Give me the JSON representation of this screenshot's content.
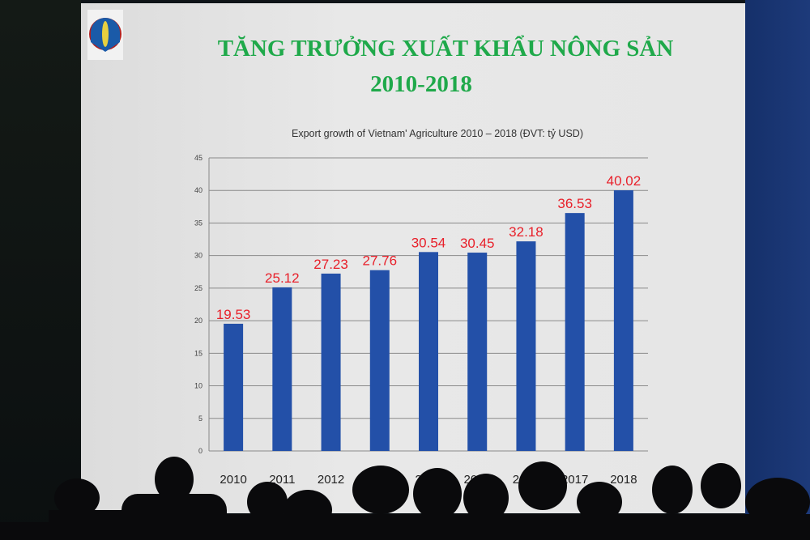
{
  "slide": {
    "title_line1": "TĂNG TRƯỞNG XUẤT KHẨU NÔNG SẢN",
    "title_line2": "2010-2018",
    "logo_icon": "ministry-of-agriculture-logo",
    "title_color": "#1fa94a"
  },
  "chart_data": {
    "type": "bar",
    "title": "Export  growth of Vietnam' Agriculture 2010 – 2018 (ĐVT: tỷ USD)",
    "categories": [
      "2010",
      "2011",
      "2012",
      "2013",
      "2014",
      "2015",
      "2016",
      "2017",
      "2018"
    ],
    "values": [
      19.53,
      25.12,
      27.23,
      27.76,
      30.54,
      30.45,
      32.18,
      36.53,
      40.02
    ],
    "data_labels": [
      "19.53",
      "25.12",
      "27.23",
      "27.76",
      "30.54",
      "30.45",
      "32.18",
      "36.53",
      "40.02"
    ],
    "xlabel": "",
    "ylabel": "",
    "ylim": [
      0,
      45
    ],
    "yticks": [
      "0",
      "5",
      "10",
      "15",
      "20",
      "25",
      "30",
      "35",
      "40",
      "45"
    ],
    "grid": true,
    "bar_color": "#2350a8",
    "label_color": "#e8202a"
  }
}
